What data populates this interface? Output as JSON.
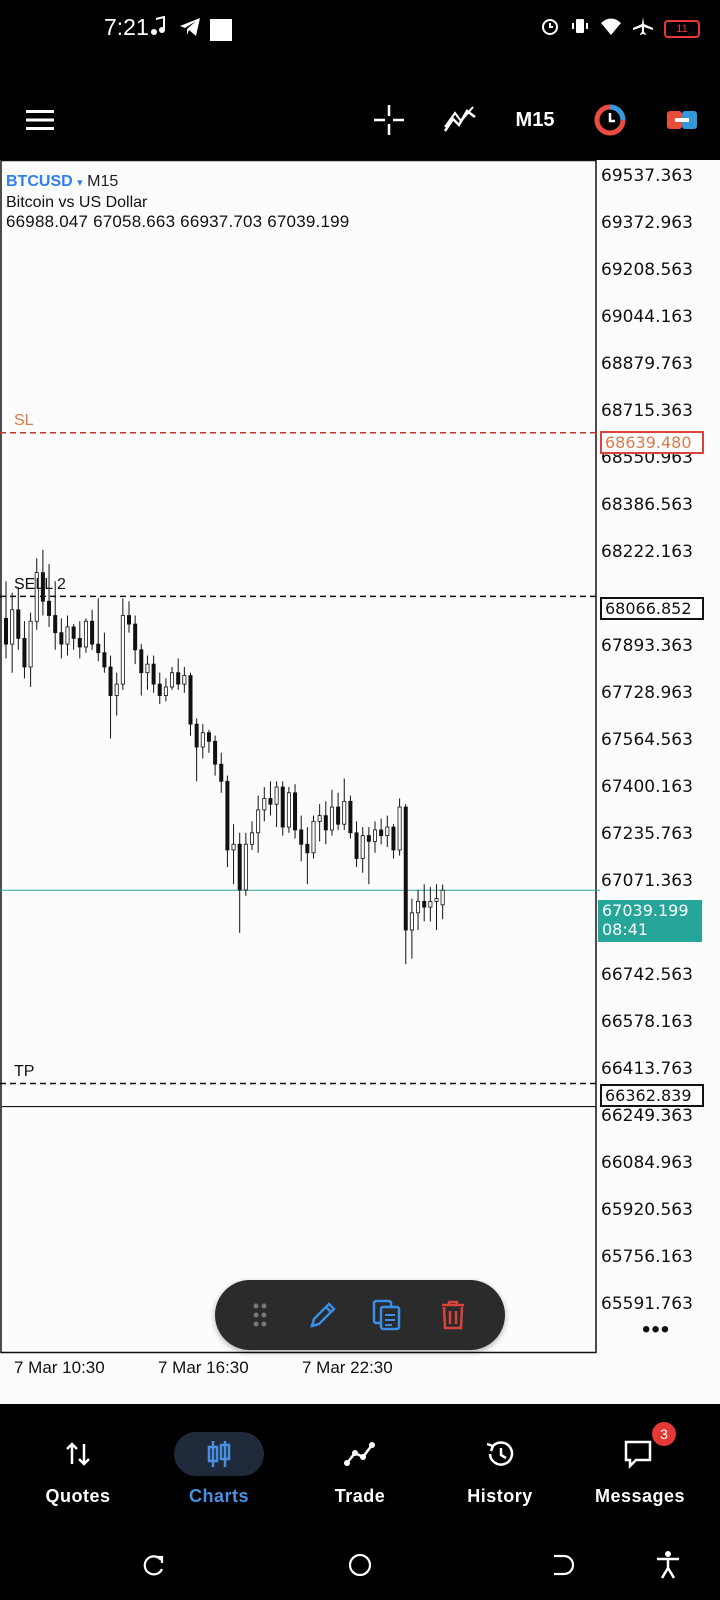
{
  "status_bar": {
    "time": "7:21",
    "battery": "11"
  },
  "toolbar": {
    "timeframe": "M15"
  },
  "chart": {
    "symbol": "BTCUSD",
    "caret": "▾",
    "timeframe": "M15",
    "description": "Bitcoin vs US Dollar",
    "ohlc": "66988.047 67058.663 66937.703 67039.199",
    "price_axis": [
      "69537.363",
      "69372.963",
      "69208.563",
      "69044.163",
      "68879.763",
      "68715.363",
      "68550.963",
      "68386.563",
      "68222.163",
      "67893.363",
      "67728.963",
      "67564.563",
      "67400.163",
      "67235.763",
      "67071.363",
      "66906.963",
      "66742.563",
      "66578.163",
      "66413.763",
      "66249.363",
      "66084.963",
      "65920.563",
      "65756.163",
      "65591.763"
    ],
    "time_axis": [
      "7 Mar 10:30",
      "7 Mar 16:30",
      "7 Mar 22:30"
    ],
    "lines": {
      "sl": {
        "label": "SL",
        "price": "68639.480",
        "color": "#c0392b"
      },
      "sell": {
        "label": "SELL 2",
        "price": "68066.852"
      },
      "tp": {
        "label": "TP",
        "price": "66362.839"
      }
    },
    "current": {
      "price": "67039.199",
      "countdown": "08:41",
      "color": "#26a69a"
    },
    "more": "•••"
  },
  "chart_data": {
    "type": "candlestick",
    "symbol": "BTCUSD",
    "timeframe": "M15",
    "ylim": [
      65500,
      69600
    ],
    "candles": [
      {
        "o": 67990,
        "h": 68120,
        "l": 67850,
        "c": 67900
      },
      {
        "o": 67900,
        "h": 68080,
        "l": 67800,
        "c": 68020
      },
      {
        "o": 68020,
        "h": 68100,
        "l": 67880,
        "c": 67920
      },
      {
        "o": 67920,
        "h": 67980,
        "l": 67780,
        "c": 67820
      },
      {
        "o": 67820,
        "h": 68010,
        "l": 67750,
        "c": 67980
      },
      {
        "o": 67980,
        "h": 68200,
        "l": 67950,
        "c": 68150
      },
      {
        "o": 68150,
        "h": 68230,
        "l": 68000,
        "c": 68050
      },
      {
        "o": 68050,
        "h": 68180,
        "l": 67960,
        "c": 68000
      },
      {
        "o": 68000,
        "h": 68120,
        "l": 67880,
        "c": 67940
      },
      {
        "o": 67940,
        "h": 67990,
        "l": 67850,
        "c": 67900
      },
      {
        "o": 67900,
        "h": 68000,
        "l": 67860,
        "c": 67960
      },
      {
        "o": 67960,
        "h": 67970,
        "l": 67880,
        "c": 67920
      },
      {
        "o": 67920,
        "h": 67980,
        "l": 67850,
        "c": 67890
      },
      {
        "o": 67890,
        "h": 67990,
        "l": 67870,
        "c": 67980
      },
      {
        "o": 67980,
        "h": 68020,
        "l": 67880,
        "c": 67900
      },
      {
        "o": 67900,
        "h": 68060,
        "l": 67840,
        "c": 67870
      },
      {
        "o": 67870,
        "h": 67940,
        "l": 67800,
        "c": 67820
      },
      {
        "o": 67820,
        "h": 67860,
        "l": 67570,
        "c": 67720
      },
      {
        "o": 67720,
        "h": 67800,
        "l": 67650,
        "c": 67760
      },
      {
        "o": 67760,
        "h": 68060,
        "l": 67740,
        "c": 68000
      },
      {
        "o": 68000,
        "h": 68050,
        "l": 67940,
        "c": 67970
      },
      {
        "o": 67970,
        "h": 68000,
        "l": 67830,
        "c": 67880
      },
      {
        "o": 67880,
        "h": 67900,
        "l": 67720,
        "c": 67800
      },
      {
        "o": 67800,
        "h": 67860,
        "l": 67740,
        "c": 67830
      },
      {
        "o": 67830,
        "h": 67860,
        "l": 67730,
        "c": 67760
      },
      {
        "o": 67760,
        "h": 67800,
        "l": 67690,
        "c": 67720
      },
      {
        "o": 67720,
        "h": 67780,
        "l": 67700,
        "c": 67750
      },
      {
        "o": 67750,
        "h": 67820,
        "l": 67740,
        "c": 67800
      },
      {
        "o": 67800,
        "h": 67850,
        "l": 67740,
        "c": 67760
      },
      {
        "o": 67760,
        "h": 67820,
        "l": 67730,
        "c": 67790
      },
      {
        "o": 67790,
        "h": 67800,
        "l": 67580,
        "c": 67620
      },
      {
        "o": 67620,
        "h": 67640,
        "l": 67420,
        "c": 67540
      },
      {
        "o": 67540,
        "h": 67620,
        "l": 67500,
        "c": 67590
      },
      {
        "o": 67590,
        "h": 67600,
        "l": 67520,
        "c": 67560
      },
      {
        "o": 67560,
        "h": 67580,
        "l": 67440,
        "c": 67480
      },
      {
        "o": 67480,
        "h": 67520,
        "l": 67380,
        "c": 67420
      },
      {
        "o": 67420,
        "h": 67440,
        "l": 67120,
        "c": 67180
      },
      {
        "o": 67180,
        "h": 67270,
        "l": 67060,
        "c": 67200
      },
      {
        "o": 67200,
        "h": 67240,
        "l": 66890,
        "c": 67040
      },
      {
        "o": 67040,
        "h": 67240,
        "l": 67020,
        "c": 67200
      },
      {
        "o": 67200,
        "h": 67280,
        "l": 67180,
        "c": 67240
      },
      {
        "o": 67240,
        "h": 67370,
        "l": 67170,
        "c": 67320
      },
      {
        "o": 67320,
        "h": 67400,
        "l": 67280,
        "c": 67360
      },
      {
        "o": 67360,
        "h": 67420,
        "l": 67300,
        "c": 67340
      },
      {
        "o": 67340,
        "h": 67420,
        "l": 67260,
        "c": 67400
      },
      {
        "o": 67400,
        "h": 67420,
        "l": 67230,
        "c": 67260
      },
      {
        "o": 67260,
        "h": 67400,
        "l": 67240,
        "c": 67380
      },
      {
        "o": 67380,
        "h": 67410,
        "l": 67220,
        "c": 67250
      },
      {
        "o": 67250,
        "h": 67300,
        "l": 67140,
        "c": 67200
      },
      {
        "o": 67200,
        "h": 67260,
        "l": 67060,
        "c": 67170
      },
      {
        "o": 67170,
        "h": 67300,
        "l": 67150,
        "c": 67280
      },
      {
        "o": 67280,
        "h": 67340,
        "l": 67210,
        "c": 67300
      },
      {
        "o": 67300,
        "h": 67350,
        "l": 67200,
        "c": 67250
      },
      {
        "o": 67250,
        "h": 67390,
        "l": 67230,
        "c": 67330
      },
      {
        "o": 67330,
        "h": 67380,
        "l": 67250,
        "c": 67270
      },
      {
        "o": 67270,
        "h": 67430,
        "l": 67250,
        "c": 67350
      },
      {
        "o": 67350,
        "h": 67370,
        "l": 67220,
        "c": 67240
      },
      {
        "o": 67240,
        "h": 67280,
        "l": 67120,
        "c": 67150
      },
      {
        "o": 67150,
        "h": 67260,
        "l": 67100,
        "c": 67230
      },
      {
        "o": 67230,
        "h": 67260,
        "l": 67060,
        "c": 67210
      },
      {
        "o": 67210,
        "h": 67280,
        "l": 67170,
        "c": 67250
      },
      {
        "o": 67250,
        "h": 67290,
        "l": 67200,
        "c": 67230
      },
      {
        "o": 67230,
        "h": 67300,
        "l": 67190,
        "c": 67260
      },
      {
        "o": 67260,
        "h": 67270,
        "l": 67150,
        "c": 67180
      },
      {
        "o": 67180,
        "h": 67360,
        "l": 67160,
        "c": 67330
      },
      {
        "o": 67330,
        "h": 67340,
        "l": 66780,
        "c": 66900
      },
      {
        "o": 66900,
        "h": 67010,
        "l": 66800,
        "c": 66960
      },
      {
        "o": 66960,
        "h": 67040,
        "l": 66900,
        "c": 67000
      },
      {
        "o": 67000,
        "h": 67060,
        "l": 66930,
        "c": 66980
      },
      {
        "o": 66980,
        "h": 67050,
        "l": 66930,
        "c": 67000
      },
      {
        "o": 67000,
        "h": 67060,
        "l": 66900,
        "c": 67010
      },
      {
        "o": 66988.047,
        "h": 67058.663,
        "l": 66937.703,
        "c": 67039.199
      }
    ]
  },
  "float_bar": {},
  "bottom_nav": {
    "items": [
      {
        "label": "Quotes"
      },
      {
        "label": "Charts"
      },
      {
        "label": "Trade"
      },
      {
        "label": "History"
      },
      {
        "label": "Messages",
        "badge": "3"
      }
    ]
  }
}
